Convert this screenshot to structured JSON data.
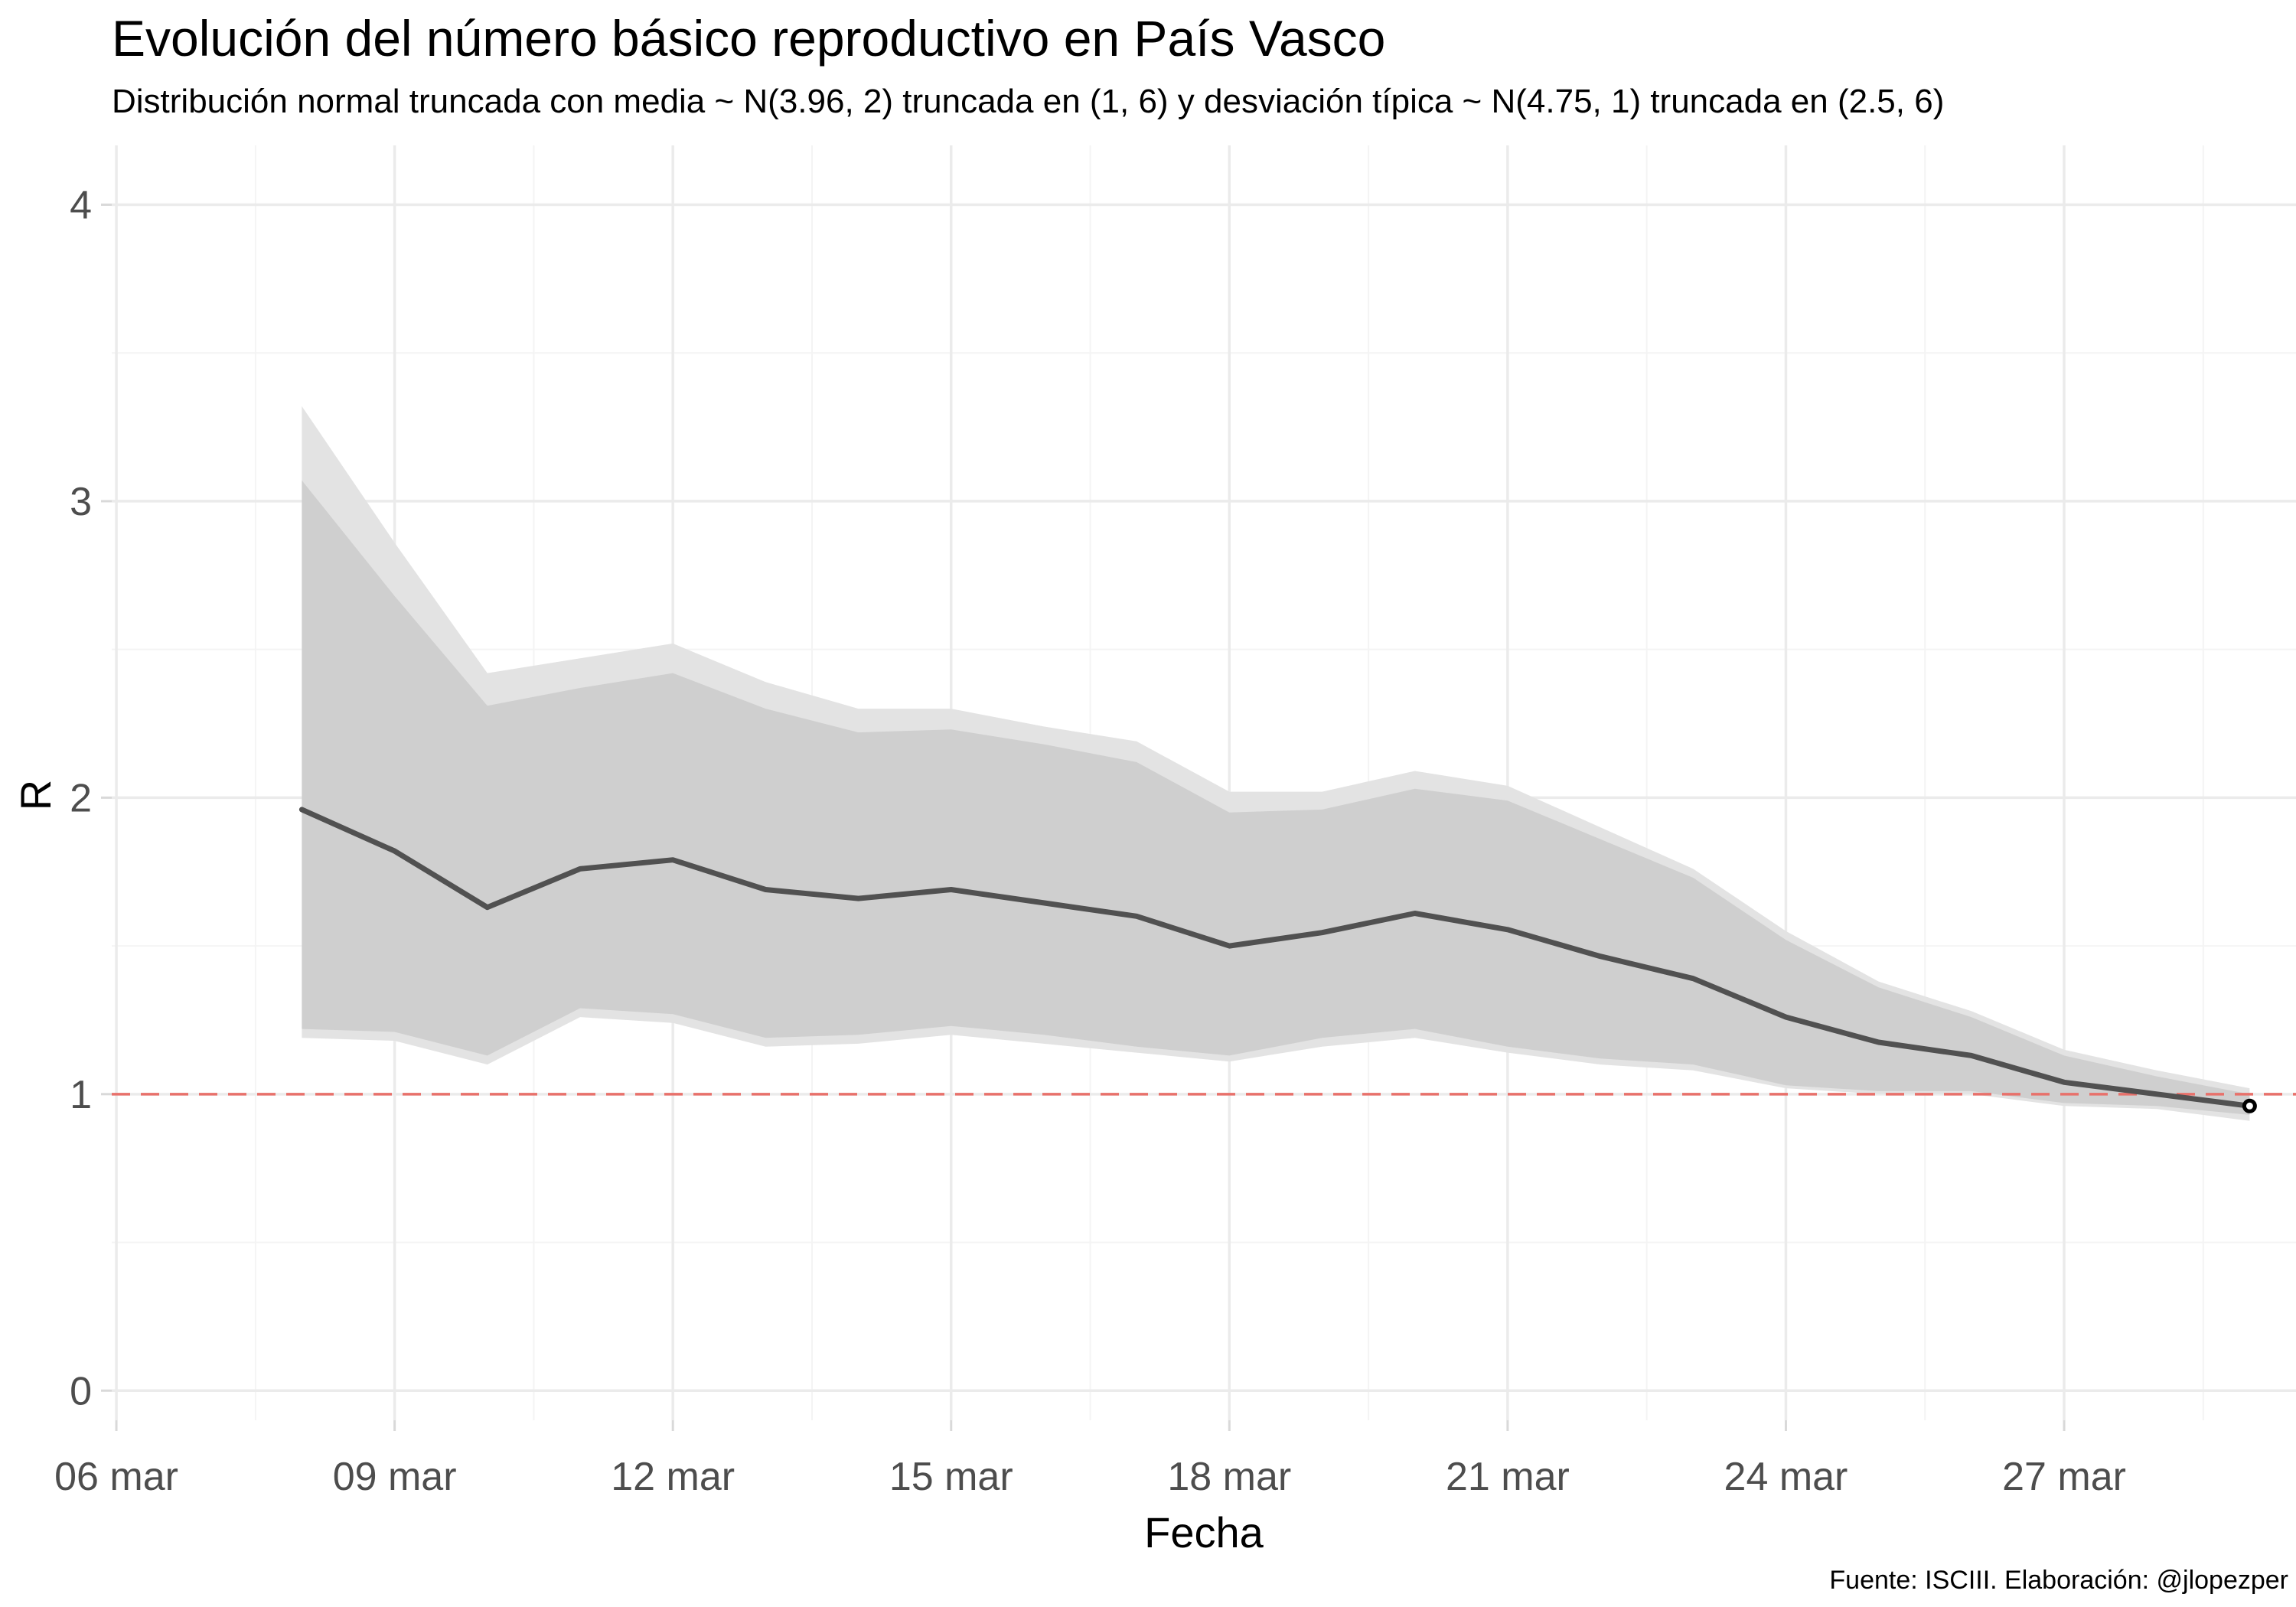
{
  "chart_data": {
    "type": "line",
    "title": "Evolución del número básico reproductivo en País Vasco",
    "subtitle": "Distribución normal truncada con media ~ N(3.96, 2) truncada en (1, 6) y desviación típica ~ N(4.75, 1) truncada en (2.5, 6)",
    "caption": "Fuente: ISCIII. Elaboración: @jlopezper",
    "xlabel": "Fecha",
    "ylabel": "R",
    "x_ticks": [
      {
        "day": 6,
        "label": "06 mar"
      },
      {
        "day": 9,
        "label": "09 mar"
      },
      {
        "day": 12,
        "label": "12 mar"
      },
      {
        "day": 15,
        "label": "15 mar"
      },
      {
        "day": 18,
        "label": "18 mar"
      },
      {
        "day": 21,
        "label": "21 mar"
      },
      {
        "day": 24,
        "label": "24 mar"
      },
      {
        "day": 27,
        "label": "27 mar"
      }
    ],
    "y_ticks": [
      0,
      1,
      2,
      3,
      4
    ],
    "ylim": [
      -0.1,
      4.2
    ],
    "xlim_days": [
      5.95,
      29.5
    ],
    "x_days": [
      8,
      9,
      10,
      11,
      12,
      13,
      14,
      15,
      16,
      17,
      18,
      19,
      20,
      21,
      22,
      23,
      24,
      25,
      26,
      27,
      28,
      29
    ],
    "median": [
      1.96,
      1.82,
      1.63,
      1.76,
      1.79,
      1.69,
      1.66,
      1.69,
      1.645,
      1.6,
      1.5,
      1.545,
      1.61,
      1.555,
      1.465,
      1.39,
      1.26,
      1.175,
      1.13,
      1.04,
      1.0,
      0.96
    ],
    "outer_lower": [
      1.19,
      1.18,
      1.1,
      1.26,
      1.24,
      1.16,
      1.17,
      1.2,
      1.17,
      1.14,
      1.11,
      1.16,
      1.19,
      1.14,
      1.1,
      1.08,
      1.02,
      1.0,
      1.0,
      0.96,
      0.95,
      0.91
    ],
    "outer_upper": [
      3.32,
      2.86,
      2.42,
      2.47,
      2.52,
      2.39,
      2.3,
      2.3,
      2.24,
      2.19,
      2.02,
      2.02,
      2.09,
      2.04,
      1.9,
      1.76,
      1.55,
      1.38,
      1.28,
      1.15,
      1.08,
      1.02
    ],
    "inner_lower": [
      1.22,
      1.21,
      1.13,
      1.29,
      1.27,
      1.19,
      1.2,
      1.23,
      1.2,
      1.16,
      1.13,
      1.19,
      1.22,
      1.16,
      1.12,
      1.1,
      1.03,
      1.01,
      1.01,
      0.97,
      0.96,
      0.93
    ],
    "inner_upper": [
      3.07,
      2.68,
      2.31,
      2.37,
      2.42,
      2.3,
      2.22,
      2.23,
      2.18,
      2.12,
      1.95,
      1.96,
      2.03,
      1.99,
      1.86,
      1.73,
      1.52,
      1.36,
      1.26,
      1.13,
      1.06,
      1.0
    ],
    "reference_line": 1,
    "grid": true,
    "colors": {
      "outer_band": "#e3e3e3",
      "inner_band": "#cfcfcf",
      "line": "#515151",
      "reference": "#e8716b",
      "grid_major": "#ebebeb",
      "grid_minor": "#f4f4f4",
      "tick_text": "#4d4d4d",
      "axis_tick": "#d9d9d9"
    }
  }
}
